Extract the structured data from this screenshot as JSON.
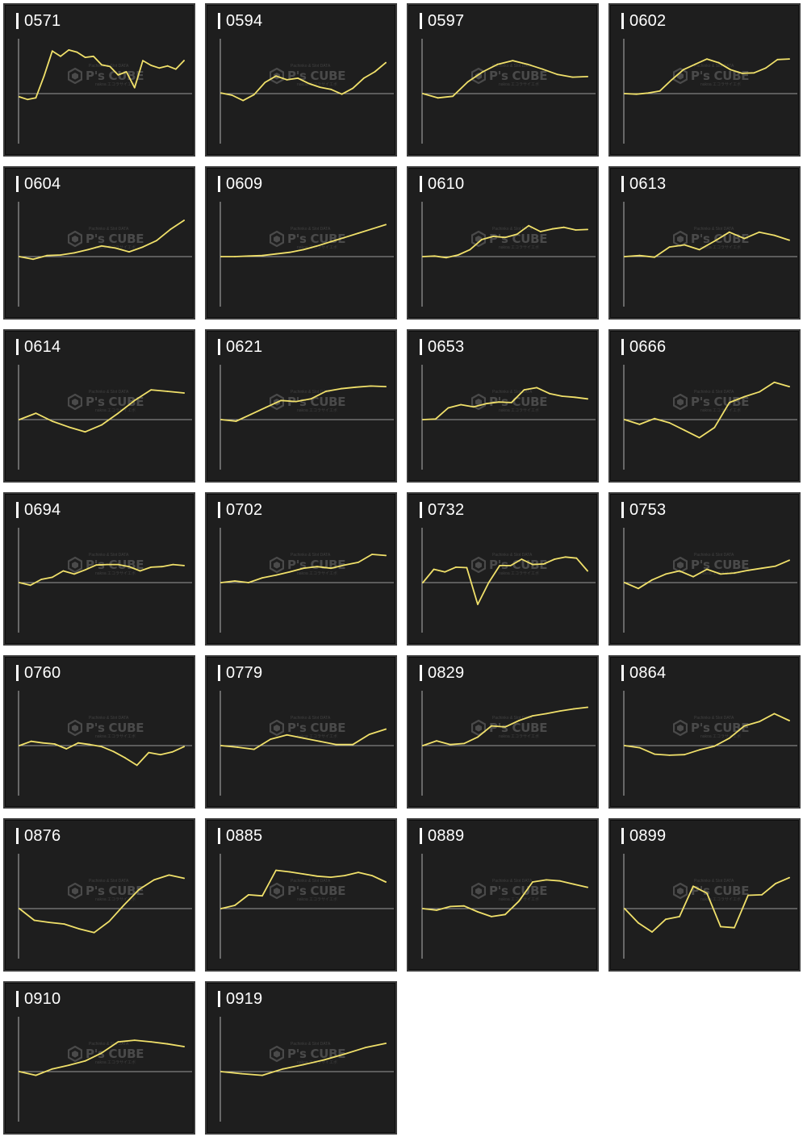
{
  "colors": {
    "panel": "#1e1e1e",
    "border": "#3a3a3a",
    "line": "#f0e06a",
    "axis": "#9a9a9a",
    "title": "#ffffff",
    "watermark": "#6f6f6f"
  },
  "watermark": {
    "top": "Pachinko & Slot DATA",
    "brand": "P's CUBE",
    "bottom": "nakoa エコラサイエボ"
  },
  "chart_data": [
    {
      "type": "line",
      "title": "0571",
      "ylim": [
        -10,
        10
      ],
      "grid": false,
      "y": [
        -0.6,
        -1.1,
        -0.8,
        3.3,
        8,
        7,
        8.2,
        7.8,
        6.8,
        7,
        5.4,
        5.1,
        3.5,
        4.1,
        1.1,
        6.2,
        5.3,
        4.8,
        5.2,
        4.6,
        6.2
      ]
    },
    {
      "type": "line",
      "title": "0594",
      "ylim": [
        -10,
        10
      ],
      "grid": false,
      "y": [
        0.1,
        -0.3,
        -1.3,
        -0.2,
        2.1,
        3.3,
        2.6,
        2.9,
        1.9,
        1.2,
        0.8,
        -0.1,
        1,
        2.9,
        4.1,
        5.8
      ]
    },
    {
      "type": "line",
      "title": "0597",
      "ylim": [
        -10,
        10
      ],
      "grid": false,
      "y": [
        0,
        -0.8,
        -0.5,
        2.2,
        4.1,
        5.5,
        6.2,
        5.5,
        4.6,
        3.6,
        3.1,
        3.2
      ]
    },
    {
      "type": "line",
      "title": "0602",
      "ylim": [
        -10,
        10
      ],
      "grid": false,
      "y": [
        0,
        -0.1,
        0.1,
        0.5,
        2.6,
        4.5,
        5.5,
        6.5,
        5.8,
        4.5,
        3.8,
        3.9,
        4.8,
        6.4,
        6.5
      ]
    },
    {
      "type": "line",
      "title": "0604",
      "ylim": [
        -10,
        10
      ],
      "grid": false,
      "y": [
        0,
        -0.5,
        0.2,
        0.3,
        0.7,
        1.3,
        2,
        1.6,
        0.9,
        1.8,
        3,
        5.1,
        6.8
      ]
    },
    {
      "type": "line",
      "title": "0609",
      "ylim": [
        -10,
        10
      ],
      "grid": false,
      "y": [
        0,
        0,
        0.1,
        0.2,
        0.5,
        0.8,
        1.3,
        2,
        2.8,
        3.6,
        4.4,
        5.2,
        6
      ]
    },
    {
      "type": "line",
      "title": "0610",
      "ylim": [
        -10,
        10
      ],
      "grid": false,
      "y": [
        0,
        0.1,
        -0.2,
        0.3,
        1.3,
        3.2,
        3.8,
        3.6,
        4.2,
        5.8,
        4.7,
        5.2,
        5.5,
        5,
        5.1
      ]
    },
    {
      "type": "line",
      "title": "0613",
      "ylim": [
        -10,
        10
      ],
      "grid": false,
      "y": [
        0,
        0.2,
        -0.1,
        1.8,
        2.2,
        1.3,
        2.9,
        4.6,
        3.4,
        4.6,
        4,
        3.1
      ]
    },
    {
      "type": "line",
      "title": "0614",
      "ylim": [
        -10,
        10
      ],
      "grid": false,
      "y": [
        0,
        1.2,
        -0.3,
        -1.4,
        -2.3,
        -1,
        1.2,
        3.6,
        5.6,
        5.3,
        5
      ]
    },
    {
      "type": "line",
      "title": "0621",
      "ylim": [
        -10,
        10
      ],
      "grid": false,
      "y": [
        0,
        -0.3,
        1,
        2.3,
        3.6,
        3.4,
        3.9,
        5.3,
        5.8,
        6.1,
        6.3,
        6.2
      ]
    },
    {
      "type": "line",
      "title": "0653",
      "ylim": [
        -10,
        10
      ],
      "grid": false,
      "y": [
        0,
        0.1,
        2.2,
        2.8,
        2.4,
        3,
        3.3,
        3.2,
        5.6,
        6,
        4.9,
        4.4,
        4.2,
        3.9
      ]
    },
    {
      "type": "line",
      "title": "0666",
      "ylim": [
        -10,
        10
      ],
      "grid": false,
      "y": [
        0,
        -0.9,
        0.2,
        -0.6,
        -2,
        -3.4,
        -1.5,
        3.2,
        4.3,
        5.2,
        7,
        6.2
      ]
    },
    {
      "type": "line",
      "title": "0694",
      "ylim": [
        -10,
        10
      ],
      "grid": false,
      "y": [
        0,
        -0.5,
        0.6,
        1,
        2.2,
        1.6,
        2.4,
        3.3,
        3.4,
        3.4,
        3,
        2.2,
        2.9,
        3,
        3.4,
        3.2
      ]
    },
    {
      "type": "line",
      "title": "0702",
      "ylim": [
        -10,
        10
      ],
      "grid": false,
      "y": [
        0,
        0.3,
        0,
        0.9,
        1.4,
        2,
        2.7,
        3,
        2.7,
        3.3,
        3.8,
        5.3,
        5.1
      ]
    },
    {
      "type": "line",
      "title": "0732",
      "ylim": [
        -10,
        10
      ],
      "grid": false,
      "y": [
        0,
        2.5,
        2,
        2.9,
        2.8,
        -4.1,
        0,
        3.2,
        3.2,
        4.4,
        3.4,
        3.5,
        4.4,
        4.8,
        4.6,
        2.2
      ]
    },
    {
      "type": "line",
      "title": "0753",
      "ylim": [
        -10,
        10
      ],
      "grid": false,
      "y": [
        0,
        -1.1,
        0.5,
        1.6,
        2.2,
        1.1,
        2.5,
        1.6,
        1.8,
        2.3,
        2.7,
        3.1,
        4.2
      ]
    },
    {
      "type": "line",
      "title": "0760",
      "ylim": [
        -10,
        10
      ],
      "grid": false,
      "y": [
        0,
        0.8,
        0.5,
        0.3,
        -0.6,
        0.5,
        0.2,
        -0.2,
        -1.1,
        -2.3,
        -3.7,
        -1.3,
        -1.7,
        -1.2,
        -0.2
      ]
    },
    {
      "type": "line",
      "title": "0779",
      "ylim": [
        -10,
        10
      ],
      "grid": false,
      "y": [
        0,
        -0.3,
        -0.7,
        1.2,
        2,
        1.4,
        0.8,
        0.2,
        0.2,
        2.1,
        3.1
      ]
    },
    {
      "type": "line",
      "title": "0829",
      "ylim": [
        -10,
        10
      ],
      "grid": false,
      "y": [
        0,
        0.9,
        0.2,
        0.4,
        1.6,
        3.7,
        3.5,
        4.7,
        5.6,
        6,
        6.5,
        6.9,
        7.2
      ]
    },
    {
      "type": "line",
      "title": "0864",
      "ylim": [
        -10,
        10
      ],
      "grid": false,
      "y": [
        0,
        -0.4,
        -1.6,
        -1.8,
        -1.7,
        -0.8,
        -0.1,
        1.4,
        3.7,
        4.5,
        6,
        4.7
      ]
    },
    {
      "type": "line",
      "title": "0876",
      "ylim": [
        -10,
        10
      ],
      "grid": false,
      "y": [
        0,
        -2.2,
        -2.6,
        -2.9,
        -3.8,
        -4.5,
        -2.4,
        0.7,
        3.6,
        5.4,
        6.3,
        5.7
      ]
    },
    {
      "type": "line",
      "title": "0885",
      "ylim": [
        -10,
        10
      ],
      "grid": false,
      "y": [
        0,
        0.6,
        2.6,
        2.4,
        7.2,
        6.9,
        6.5,
        6.1,
        5.9,
        6.2,
        6.8,
        6.2,
        5
      ]
    },
    {
      "type": "line",
      "title": "0889",
      "ylim": [
        -10,
        10
      ],
      "grid": false,
      "y": [
        0,
        -0.3,
        0.4,
        0.5,
        -0.6,
        -1.5,
        -1.1,
        1.4,
        5,
        5.4,
        5.2,
        4.6,
        4
      ]
    },
    {
      "type": "line",
      "title": "0899",
      "ylim": [
        -10,
        10
      ],
      "grid": false,
      "y": [
        0,
        -2.7,
        -4.4,
        -2,
        -1.5,
        4.2,
        2.9,
        -3.4,
        -3.6,
        2.5,
        2.6,
        4.7,
        5.8
      ]
    },
    {
      "type": "line",
      "title": "0910",
      "ylim": [
        -10,
        10
      ],
      "grid": false,
      "y": [
        0,
        -0.7,
        0.5,
        1.2,
        2,
        3.5,
        5.6,
        5.9,
        5.6,
        5.2,
        4.7
      ]
    },
    {
      "type": "line",
      "title": "0919",
      "ylim": [
        -10,
        10
      ],
      "grid": false,
      "y": [
        0,
        -0.4,
        -0.7,
        0.5,
        1.3,
        2.2,
        3.3,
        4.5,
        5.3
      ]
    }
  ]
}
